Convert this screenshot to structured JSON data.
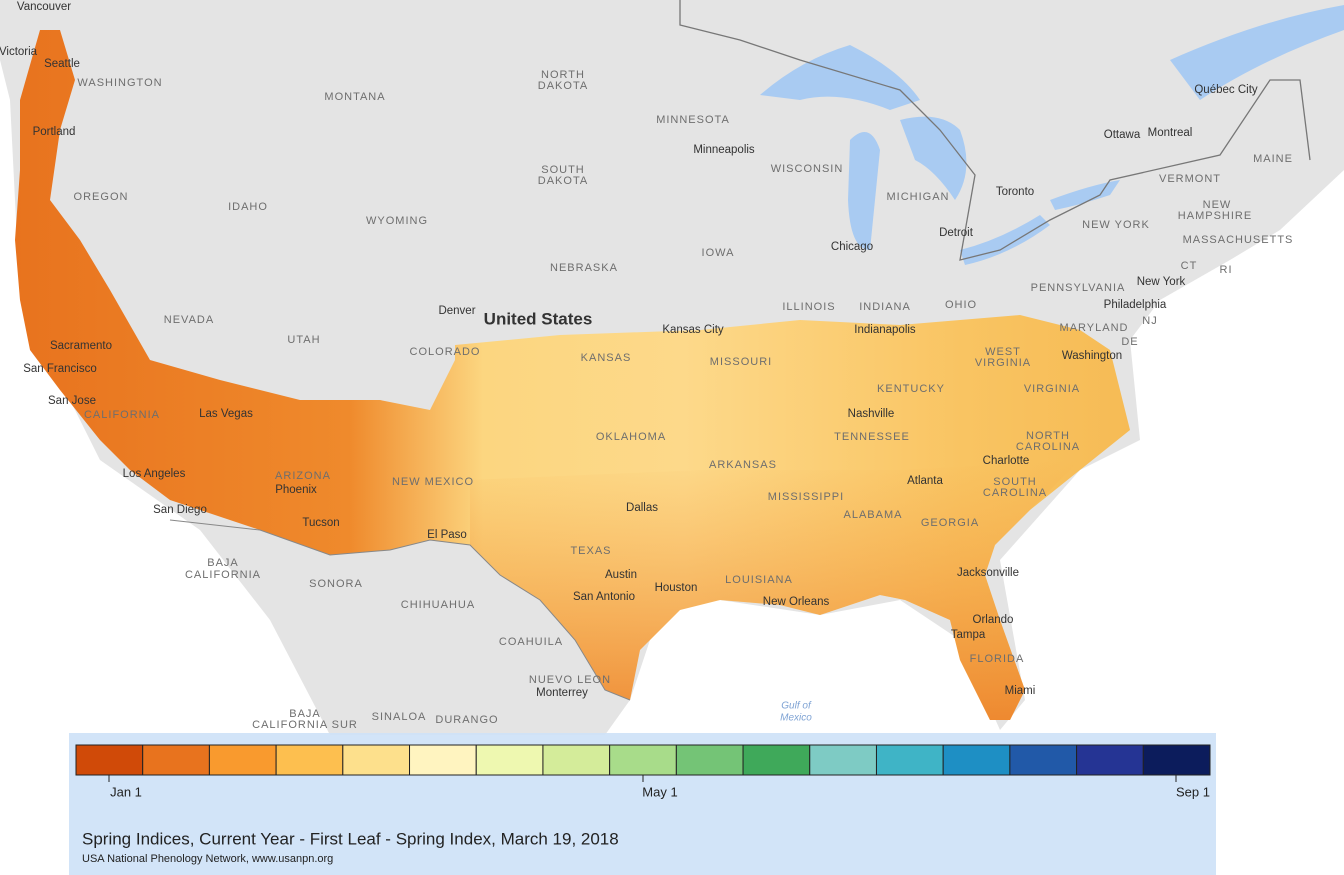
{
  "map": {
    "labels": [
      "Vancouver",
      "Victoria",
      "Seattle",
      "WASHINGTON",
      "Portland",
      "MONTANA",
      "NORTH",
      "DAKOTA",
      "MINNESOTA",
      "Minneapolis",
      "SOUTH",
      "DAKOTA",
      "WISCONSIN",
      "MICHIGAN",
      "OREGON",
      "IDAHO",
      "WYOMING",
      "NEBRASKA",
      "IOWA",
      "Chicago",
      "Detroit",
      "Toronto",
      "Ottawa",
      "Montreal",
      "Québec City",
      "MAINE",
      "VERMONT",
      "NEW",
      "HAMPSHIRE",
      "NEW YORK",
      "MASSACHUSETTS",
      "CT",
      "RI",
      "PENNSYLVANIA",
      "New York",
      "Philadelphia",
      "NJ",
      "MARYLAND",
      "DE",
      "Washington",
      "OHIO",
      "INDIANA",
      "ILLINOIS",
      "Indianapolis",
      "Kansas City",
      "Denver",
      "United States",
      "NEVADA",
      "UTAH",
      "COLORADO",
      "Sacramento",
      "San Francisco",
      "San Jose",
      "CALIFORNIA",
      "Las Vegas",
      "KANSAS",
      "MISSOURI",
      "WEST",
      "VIRGINIA",
      "VIRGINIA",
      "KENTUCKY",
      "Nashville",
      "TENNESSEE",
      "NORTH",
      "CAROLINA",
      "OKLAHOMA",
      "ARKANSAS",
      "Charlotte",
      "Los Angeles",
      "ARIZONA",
      "NEW MEXICO",
      "Phoenix",
      "Atlanta",
      "SOUTH",
      "CAROLINA",
      "MISSISSIPPI",
      "San Diego",
      "Dallas",
      "ALABAMA",
      "GEORGIA",
      "Tucson",
      "El Paso",
      "TEXAS",
      "Jacksonville",
      "BAJA",
      "CALIFORNIA",
      "Austin",
      "Houston",
      "LOUISIANA",
      "SONORA",
      "San Antonio",
      "New Orleans",
      "CHIHUAHUA",
      "Orlando",
      "Tampa",
      "COAHUILA",
      "FLORIDA",
      "NUEVO LEON",
      "Monterrey",
      "Miami",
      "BAJA",
      "CALIFORNIA SUR",
      "SINALOA",
      "DURANGO",
      "Gulf of",
      "Mexico"
    ]
  },
  "legend": {
    "colors": [
      "#d04a08",
      "#e8731e",
      "#f99a2e",
      "#fdbf4f",
      "#fde08c",
      "#fff4c0",
      "#eef8b0",
      "#d4ec9a",
      "#a8dc8a",
      "#74c476",
      "#3fa95a",
      "#7ecbc4",
      "#3fb4c6",
      "#1e8fc4",
      "#2159a8",
      "#253494",
      "#0c1c5c"
    ],
    "tick_labels": [
      "Jan 1",
      "May 1",
      "Sep 1"
    ]
  },
  "title": "Spring Indices, Current Year - First Leaf - Spring Index, March 19, 2018",
  "credit": "USA National Phenology Network, www.usanpn.org"
}
